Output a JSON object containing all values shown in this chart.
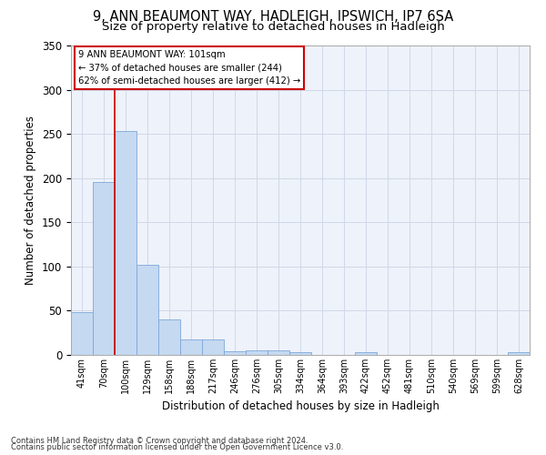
{
  "title_line1": "9, ANN BEAUMONT WAY, HADLEIGH, IPSWICH, IP7 6SA",
  "title_line2": "Size of property relative to detached houses in Hadleigh",
  "xlabel": "Distribution of detached houses by size in Hadleigh",
  "ylabel": "Number of detached properties",
  "footer_line1": "Contains HM Land Registry data © Crown copyright and database right 2024.",
  "footer_line2": "Contains public sector information licensed under the Open Government Licence v3.0.",
  "categories": [
    "41sqm",
    "70sqm",
    "100sqm",
    "129sqm",
    "158sqm",
    "188sqm",
    "217sqm",
    "246sqm",
    "276sqm",
    "305sqm",
    "334sqm",
    "364sqm",
    "393sqm",
    "422sqm",
    "452sqm",
    "481sqm",
    "510sqm",
    "540sqm",
    "569sqm",
    "599sqm",
    "628sqm"
  ],
  "values": [
    48,
    196,
    253,
    102,
    40,
    18,
    18,
    4,
    5,
    5,
    3,
    0,
    0,
    3,
    0,
    0,
    0,
    0,
    0,
    0,
    3
  ],
  "bar_color": "#c5d9f1",
  "bar_edge_color": "#7da7d9",
  "grid_color": "#d0d8e8",
  "background_color": "#eef2fa",
  "red_line_x": 2,
  "annotation_text_line1": "9 ANN BEAUMONT WAY: 101sqm",
  "annotation_text_line2": "← 37% of detached houses are smaller (244)",
  "annotation_text_line3": "62% of semi-detached houses are larger (412) →",
  "annotation_box_color": "#ffffff",
  "annotation_box_edge": "#cc0000",
  "ylim": [
    0,
    350
  ],
  "yticks": [
    0,
    50,
    100,
    150,
    200,
    250,
    300,
    350
  ],
  "title_fontsize": 10.5,
  "subtitle_fontsize": 9.5,
  "footer_fontsize": 6.0
}
